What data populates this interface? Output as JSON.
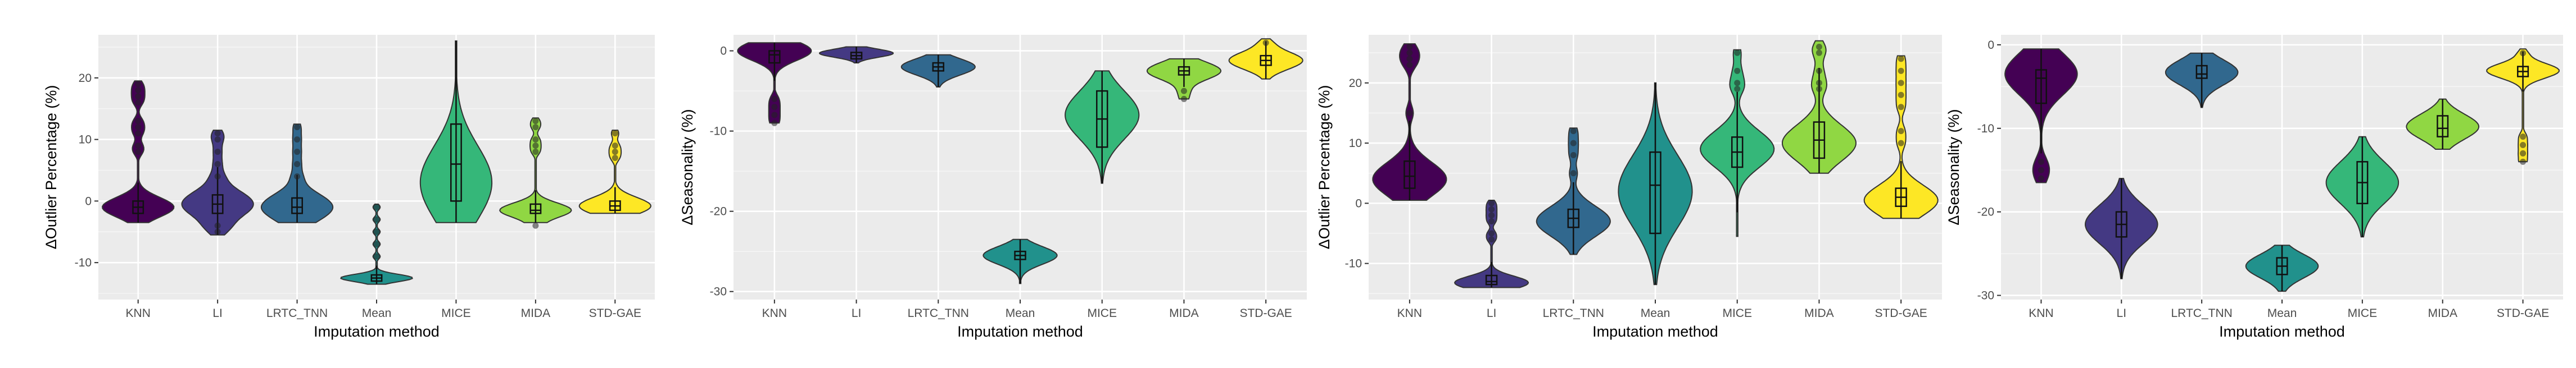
{
  "chart_data": [
    {
      "type": "violin",
      "title": "",
      "xlabel": "Imputation method",
      "ylabel": "ΔOutlier Percentage (%)",
      "ylim": [
        -16,
        27
      ],
      "yticks": [
        -10,
        0,
        10,
        20
      ],
      "categories": [
        "KNN",
        "LI",
        "LRTC_TNN",
        "Mean",
        "MICE",
        "MIDA",
        "STD-GAE"
      ],
      "colors": [
        "#440154",
        "#443983",
        "#31688e",
        "#21918c",
        "#35b779",
        "#90d743",
        "#fde725"
      ],
      "series": [
        {
          "name": "KNN",
          "min": -3.5,
          "max": 19.5,
          "q1": -2,
          "median": -1,
          "q3": 0,
          "mode": -1,
          "spread": 1.6,
          "outliers": [
            19,
            18,
            17,
            16,
            13,
            12,
            11,
            9,
            8
          ]
        },
        {
          "name": "LI",
          "min": -5.5,
          "max": 11.5,
          "q1": -2,
          "median": -0.5,
          "q3": 1,
          "mode": -0.5,
          "spread": 2.2,
          "outliers": [
            11,
            10,
            8,
            6,
            4,
            -4,
            -5
          ]
        },
        {
          "name": "LRTC_TNN",
          "min": -3.5,
          "max": 12.5,
          "q1": -2,
          "median": -1,
          "q3": 0.5,
          "mode": -1,
          "spread": 2.2,
          "outliers": [
            12,
            10,
            8,
            6,
            4
          ]
        },
        {
          "name": "Mean",
          "min": -13.5,
          "max": -0.5,
          "q1": -13,
          "median": -12.5,
          "q3": -12,
          "mode": -12.5,
          "spread": 0.6,
          "outliers": [
            -1,
            -3,
            -5,
            -7,
            -9
          ]
        },
        {
          "name": "MICE",
          "min": -3.5,
          "max": 26,
          "q1": 0,
          "median": 6,
          "q3": 12.5,
          "mode": 3,
          "spread": 6,
          "outliers": []
        },
        {
          "name": "MIDA",
          "min": -3.5,
          "max": 13.5,
          "q1": -2,
          "median": -1.5,
          "q3": -0.5,
          "mode": -1.5,
          "spread": 1.2,
          "outliers": [
            13,
            12,
            10,
            9,
            8,
            -4
          ]
        },
        {
          "name": "STD-GAE",
          "min": -2,
          "max": 11.5,
          "q1": -1.5,
          "median": -0.8,
          "q3": 0,
          "mode": -0.8,
          "spread": 1.4,
          "outliers": [
            11,
            9,
            8,
            7
          ]
        }
      ]
    },
    {
      "type": "violin",
      "title": "",
      "xlabel": "Imputation method",
      "ylabel": "ΔSeasonality (%)",
      "ylim": [
        -31,
        2
      ],
      "yticks": [
        -30,
        -20,
        -10,
        0
      ],
      "categories": [
        "KNN",
        "LI",
        "LRTC_TNN",
        "Mean",
        "MICE",
        "MIDA",
        "STD-GAE"
      ],
      "colors": [
        "#440154",
        "#443983",
        "#31688e",
        "#21918c",
        "#35b779",
        "#90d743",
        "#fde725"
      ],
      "series": [
        {
          "name": "KNN",
          "min": -9,
          "max": 1,
          "q1": -1.5,
          "median": -0.5,
          "q3": 0,
          "mode": 0,
          "spread": 1.2,
          "outliers": [
            -6,
            -7,
            -8,
            -9
          ]
        },
        {
          "name": "LI",
          "min": -1.5,
          "max": 0.5,
          "q1": -1,
          "median": -0.6,
          "q3": -0.2,
          "mode": -0.3,
          "spread": 0.5,
          "outliers": []
        },
        {
          "name": "LRTC_TNN",
          "min": -4.5,
          "max": -0.5,
          "q1": -2.5,
          "median": -2,
          "q3": -1.5,
          "mode": -2,
          "spread": 1,
          "outliers": []
        },
        {
          "name": "Mean",
          "min": -29,
          "max": -23.5,
          "q1": -26,
          "median": -25.5,
          "q3": -25,
          "mode": -25.5,
          "spread": 1.1,
          "outliers": []
        },
        {
          "name": "MICE",
          "min": -16.5,
          "max": -2.5,
          "q1": -12,
          "median": -8.5,
          "q3": -5,
          "mode": -8,
          "spread": 3,
          "outliers": []
        },
        {
          "name": "MIDA",
          "min": -6,
          "max": -1,
          "q1": -3,
          "median": -2.5,
          "q3": -2,
          "mode": -2.5,
          "spread": 1.1,
          "outliers": [
            -5,
            -6
          ]
        },
        {
          "name": "STD-GAE",
          "min": -3.5,
          "max": 1.5,
          "q1": -1.8,
          "median": -1.2,
          "q3": -0.6,
          "mode": -1.2,
          "spread": 1.1,
          "outliers": [
            1
          ]
        }
      ]
    },
    {
      "type": "violin",
      "title": "",
      "xlabel": "Imputation method",
      "ylabel": "ΔOutlier Percentage (%)",
      "ylim": [
        -16,
        28
      ],
      "yticks": [
        -10,
        0,
        10,
        20
      ],
      "categories": [
        "KNN",
        "LI",
        "LRTC_TNN",
        "Mean",
        "MICE",
        "MIDA",
        "STD-GAE"
      ],
      "colors": [
        "#440154",
        "#443983",
        "#31688e",
        "#21918c",
        "#35b779",
        "#90d743",
        "#fde725"
      ],
      "series": [
        {
          "name": "KNN",
          "min": 0.5,
          "max": 26.5,
          "q1": 2.5,
          "median": 4.5,
          "q3": 7,
          "mode": 4,
          "spread": 2.8,
          "outliers": [
            26,
            25,
            24,
            23,
            15
          ]
        },
        {
          "name": "LI",
          "min": -14,
          "max": 0.5,
          "q1": -13.5,
          "median": -13,
          "q3": -12,
          "mode": -13.2,
          "spread": 1.1,
          "outliers": [
            0,
            -1,
            -2,
            -3,
            -5,
            -6
          ]
        },
        {
          "name": "LRTC_TNN",
          "min": -8.5,
          "max": 12.5,
          "q1": -4,
          "median": -2.5,
          "q3": -1,
          "mode": -3,
          "spread": 2.5,
          "outliers": [
            12,
            10,
            8,
            5
          ]
        },
        {
          "name": "Mean",
          "min": -13.5,
          "max": 20,
          "q1": -5,
          "median": 3,
          "q3": 8.5,
          "mode": 2,
          "spread": 6,
          "outliers": []
        },
        {
          "name": "MICE",
          "min": -5.5,
          "max": 25.5,
          "q1": 6,
          "median": 8.5,
          "q3": 11,
          "mode": 9,
          "spread": 3,
          "outliers": [
            25,
            22,
            20,
            19
          ]
        },
        {
          "name": "MIDA",
          "min": 5,
          "max": 27,
          "q1": 7.5,
          "median": 10.5,
          "q3": 13.5,
          "mode": 10,
          "spread": 3,
          "outliers": [
            26,
            25,
            22,
            20,
            19
          ]
        },
        {
          "name": "STD-GAE",
          "min": -2.5,
          "max": 24.5,
          "q1": -0.5,
          "median": 1,
          "q3": 2.5,
          "mode": 0.5,
          "spread": 2.5,
          "outliers": [
            24,
            22,
            20,
            18,
            16,
            12,
            10
          ]
        }
      ]
    },
    {
      "type": "violin",
      "title": "",
      "xlabel": "Imputation method",
      "ylabel": "ΔSeasonality (%)",
      "ylim": [
        -30.5,
        1.2
      ],
      "yticks": [
        -30,
        -20,
        -10,
        0
      ],
      "categories": [
        "KNN",
        "LI",
        "LRTC_TNN",
        "Mean",
        "MICE",
        "MIDA",
        "STD-GAE"
      ],
      "colors": [
        "#440154",
        "#443983",
        "#31688e",
        "#21918c",
        "#35b779",
        "#90d743",
        "#fde725"
      ],
      "series": [
        {
          "name": "KNN",
          "min": -16.5,
          "max": -0.5,
          "q1": -7,
          "median": -4,
          "q3": -3,
          "mode": -3.5,
          "spread": 2.5,
          "outliers": [
            -14,
            -15,
            -16
          ]
        },
        {
          "name": "LI",
          "min": -28,
          "max": -16,
          "q1": -23,
          "median": -21.5,
          "q3": -20,
          "mode": -21.5,
          "spread": 2.3,
          "outliers": []
        },
        {
          "name": "LRTC_TNN",
          "min": -7.5,
          "max": -1,
          "q1": -4,
          "median": -3.5,
          "q3": -2.5,
          "mode": -3.3,
          "spread": 1.5,
          "outliers": []
        },
        {
          "name": "Mean",
          "min": -29.5,
          "max": -24,
          "q1": -27.5,
          "median": -26.5,
          "q3": -25.5,
          "mode": -26.5,
          "spread": 1.4,
          "outliers": []
        },
        {
          "name": "MICE",
          "min": -23,
          "max": -11,
          "q1": -19,
          "median": -16.5,
          "q3": -14,
          "mode": -16.5,
          "spread": 2.5,
          "outliers": []
        },
        {
          "name": "MIDA",
          "min": -12.5,
          "max": -6.5,
          "q1": -11,
          "median": -10,
          "q3": -8.5,
          "mode": -9.8,
          "spread": 1.5,
          "outliers": []
        },
        {
          "name": "STD-GAE",
          "min": -14,
          "max": -0.5,
          "q1": -3.8,
          "median": -3.2,
          "q3": -2.6,
          "mode": -3.1,
          "spread": 0.9,
          "outliers": [
            -11,
            -12,
            -13,
            -14,
            -1
          ]
        }
      ]
    }
  ]
}
